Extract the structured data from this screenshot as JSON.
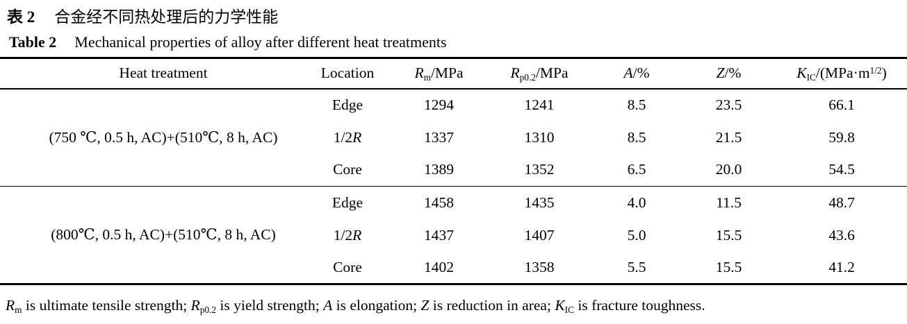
{
  "colors": {
    "text": "#000000",
    "background": "#ffffff",
    "rule": "#000000"
  },
  "caption": {
    "zh_label": "表 2",
    "zh_text": "合金经不同热处理后的力学性能",
    "en_label": "Table 2",
    "en_text": "Mechanical properties of alloy after different heat treatments"
  },
  "table": {
    "columns": [
      {
        "id": "heat_treatment",
        "label_parts": [
          {
            "t": "Heat treatment"
          }
        ]
      },
      {
        "id": "location",
        "label_parts": [
          {
            "t": "Location"
          }
        ]
      },
      {
        "id": "rm",
        "label_parts": [
          {
            "t": "R",
            "i": true
          },
          {
            "t": "m",
            "sub": true
          },
          {
            "t": "/MPa"
          }
        ]
      },
      {
        "id": "rp02",
        "label_parts": [
          {
            "t": "R",
            "i": true
          },
          {
            "t": "p0.2",
            "sub": true
          },
          {
            "t": "/MPa"
          }
        ]
      },
      {
        "id": "a",
        "label_parts": [
          {
            "t": "A",
            "i": true
          },
          {
            "t": "/%"
          }
        ]
      },
      {
        "id": "z",
        "label_parts": [
          {
            "t": "Z",
            "i": true
          },
          {
            "t": "/%"
          }
        ]
      },
      {
        "id": "kic",
        "label_parts": [
          {
            "t": "K",
            "i": true
          },
          {
            "t": "IC",
            "sub": true
          },
          {
            "t": "/(MPa·m"
          },
          {
            "t": "1/2",
            "sup": true
          },
          {
            "t": ")"
          }
        ]
      }
    ],
    "groups": [
      {
        "heat_treatment": "(750 ℃, 0.5 h, AC)+(510℃, 8 h, AC)",
        "rows": [
          {
            "location_parts": [
              {
                "t": "Edge"
              }
            ],
            "values": [
              "1294",
              "1241",
              "8.5",
              "23.5",
              "66.1"
            ]
          },
          {
            "location_parts": [
              {
                "t": "1/2"
              },
              {
                "t": "R",
                "i": true
              }
            ],
            "values": [
              "1337",
              "1310",
              "8.5",
              "21.5",
              "59.8"
            ]
          },
          {
            "location_parts": [
              {
                "t": "Core"
              }
            ],
            "values": [
              "1389",
              "1352",
              "6.5",
              "20.0",
              "54.5"
            ]
          }
        ]
      },
      {
        "heat_treatment": "(800℃, 0.5 h, AC)+(510℃, 8 h, AC)",
        "rows": [
          {
            "location_parts": [
              {
                "t": "Edge"
              }
            ],
            "values": [
              "1458",
              "1435",
              "4.0",
              "11.5",
              "48.7"
            ]
          },
          {
            "location_parts": [
              {
                "t": "1/2"
              },
              {
                "t": "R",
                "i": true
              }
            ],
            "values": [
              "1437",
              "1407",
              "5.0",
              "15.5",
              "43.6"
            ]
          },
          {
            "location_parts": [
              {
                "t": "Core"
              }
            ],
            "values": [
              "1402",
              "1358",
              "5.5",
              "15.5",
              "41.2"
            ]
          }
        ]
      }
    ]
  },
  "footnote_parts": [
    {
      "t": "R",
      "i": true
    },
    {
      "t": "m",
      "sub": true
    },
    {
      "t": " is ultimate tensile strength; "
    },
    {
      "t": "R",
      "i": true
    },
    {
      "t": "p0.2",
      "sub": true
    },
    {
      "t": " is yield strength; "
    },
    {
      "t": "A",
      "i": true
    },
    {
      "t": " is elongation; "
    },
    {
      "t": "Z",
      "i": true
    },
    {
      "t": " is reduction in area; "
    },
    {
      "t": "K",
      "i": true
    },
    {
      "t": "IC",
      "sub": true
    },
    {
      "t": " is fracture toughness."
    }
  ]
}
